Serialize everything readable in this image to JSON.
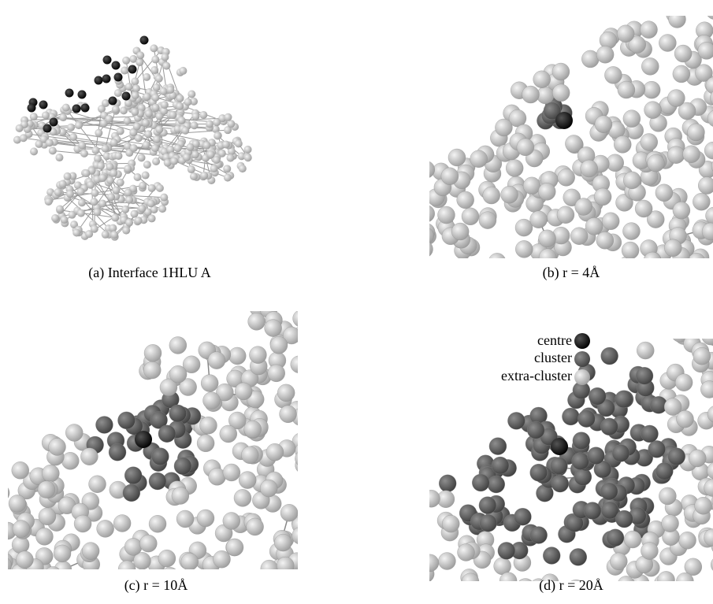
{
  "panels": [
    {
      "caption": "(a) Interface 1HLU A"
    },
    {
      "caption": "(b) r = 4Å"
    },
    {
      "caption": "(c) r = 10Å"
    },
    {
      "caption": "(d) r = 20Å"
    }
  ],
  "legend": {
    "items": [
      "centre",
      "cluster",
      "extra-cluster"
    ]
  }
}
